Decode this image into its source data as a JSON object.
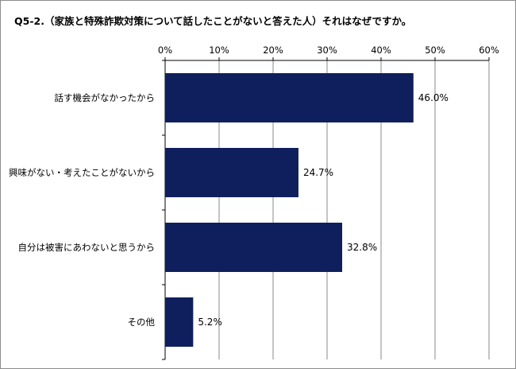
{
  "chart_data": {
    "type": "bar",
    "orientation": "horizontal",
    "title": "Q5-2.（家族と特殊詐欺対策について話したことがないと答えた人）それはなぜですか。",
    "categories": [
      "話す機会がなかったから",
      "興味がない・考えたことがないから",
      "自分は被害にあわないと思うから",
      "その他"
    ],
    "values": [
      46.0,
      24.7,
      32.8,
      5.2
    ],
    "value_labels": [
      "46.0%",
      "24.7%",
      "32.8%",
      "5.2%"
    ],
    "xlim": [
      0,
      60
    ],
    "xticks": [
      0,
      10,
      20,
      30,
      40,
      50,
      60
    ],
    "xtick_labels": [
      "0%",
      "10%",
      "20%",
      "30%",
      "40%",
      "50%",
      "60%"
    ],
    "x_axis_position": "top",
    "grid": true,
    "bar_color": "#0f1f5e",
    "gridline_color": "#8a8a8a"
  }
}
